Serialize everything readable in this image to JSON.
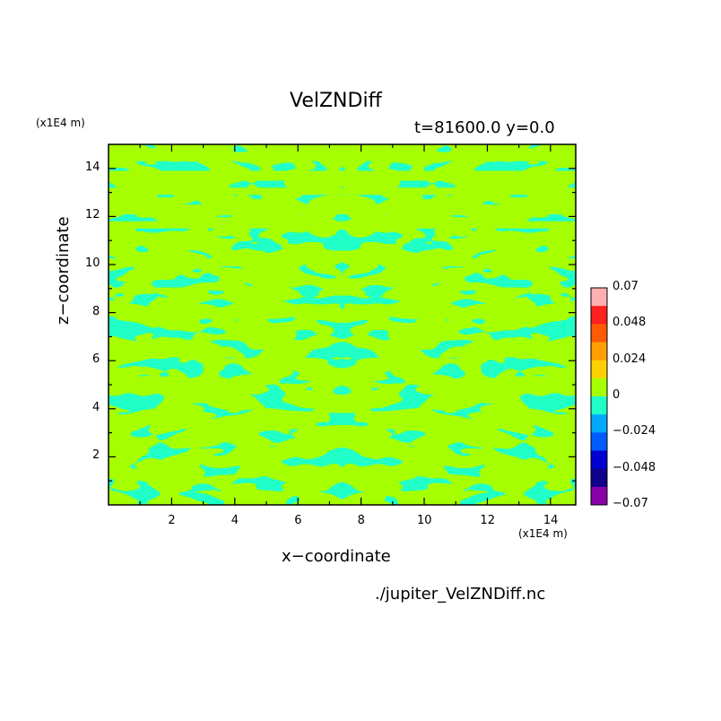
{
  "chart_data": {
    "type": "heatmap",
    "title": "VelZNDiff",
    "subtitle": "t=81600.0 y=0.0",
    "xlabel": "x−coordinate",
    "ylabel": "z−coordinate",
    "x_scale_label": "(x1E4 m)",
    "y_scale_label": "(x1E4 m)",
    "file_label": "./jupiter_VelZNDiff.nc",
    "xlim": [
      0,
      14.8
    ],
    "ylim": [
      0,
      15
    ],
    "x_ticks": [
      "2",
      "4",
      "6",
      "8",
      "10",
      "12",
      "14"
    ],
    "y_ticks": [
      "2",
      "4",
      "6",
      "8",
      "10",
      "12",
      "14"
    ],
    "colorbar": {
      "labels": [
        "0.07",
        "0.048",
        "0.024",
        "0",
        "−0.024",
        "−0.048",
        "−0.07"
      ],
      "colors": [
        "#ffb0b0",
        "#ff2020",
        "#ff5a00",
        "#ffa000",
        "#ffd000",
        "#a6ff00",
        "#20ffc8",
        "#00a8ff",
        "#005cff",
        "#0000d0",
        "#10008a",
        "#8a00a8"
      ]
    },
    "field_colors": {
      "positive": "#a6ff00",
      "negative": "#20ffc8"
    }
  }
}
